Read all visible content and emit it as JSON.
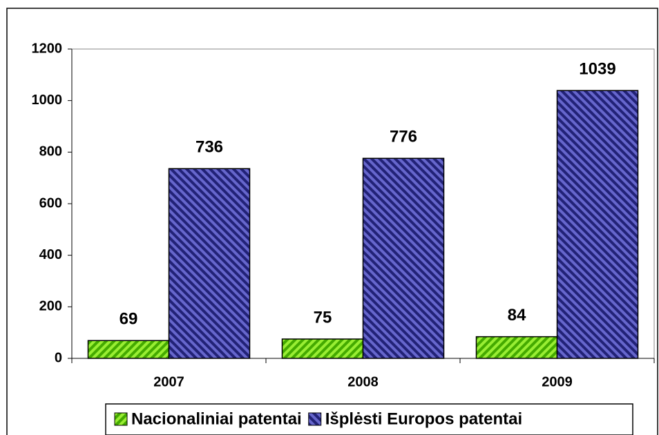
{
  "chart_data": {
    "type": "bar",
    "categories": [
      "2007",
      "2008",
      "2009"
    ],
    "series": [
      {
        "name": "Nacionaliniai patentai",
        "color": "#66cc00",
        "values": [
          69,
          75,
          84
        ]
      },
      {
        "name": "Išplėsti Europos patentai",
        "color": "#333399",
        "values": [
          736,
          776,
          1039
        ]
      }
    ],
    "ylim": [
      0,
      1200
    ],
    "yticks": [
      0,
      200,
      400,
      600,
      800,
      1000,
      1200
    ],
    "legend": "bottom"
  }
}
